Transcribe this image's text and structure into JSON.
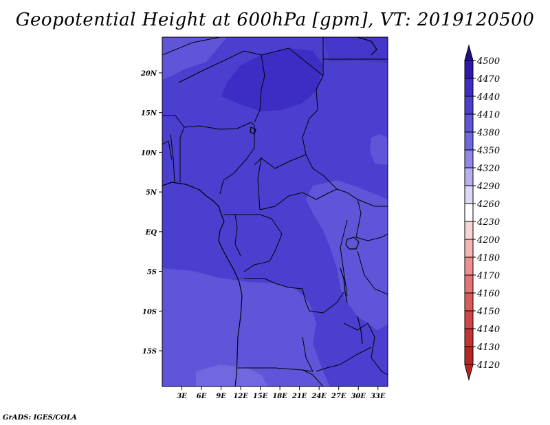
{
  "title": "Geopotential Height at 600hPa [gpm], VT: 2019120500",
  "credit": "GrADS: IGES/COLA",
  "map": {
    "lon_range": [
      0,
      34.5
    ],
    "lat_range": [
      -19.5,
      24.5
    ],
    "lon_ticks": [
      "3E",
      "6E",
      "9E",
      "12E",
      "15E",
      "18E",
      "21E",
      "24E",
      "27E",
      "30E",
      "33E"
    ],
    "lat_ticks": [
      "20N",
      "15N",
      "10N",
      "5N",
      "EQ",
      "5S",
      "10S",
      "15S"
    ],
    "lon_tick_values": [
      3,
      6,
      9,
      12,
      15,
      18,
      21,
      24,
      27,
      30,
      33
    ],
    "lat_tick_values": [
      20,
      15,
      10,
      5,
      0,
      -5,
      -10,
      -15
    ],
    "base_fill": "#4a3fcf",
    "field_colors": {
      "4410": "#4a3fcf",
      "4440": "#3e2dc4",
      "4380": "#5f55d9",
      "4350": "#7068e0"
    }
  },
  "colorbar": {
    "levels": [
      "4500",
      "4470",
      "4440",
      "4410",
      "4380",
      "4350",
      "4320",
      "4290",
      "4260",
      "4230",
      "4200",
      "4180",
      "4170",
      "4160",
      "4150",
      "4140",
      "4130",
      "4120"
    ],
    "colors": [
      "#1f0f8a",
      "#2f19ac",
      "#3e2dc4",
      "#4a3fcf",
      "#5f55d9",
      "#7068e0",
      "#8f87ea",
      "#b6b0f2",
      "#dcd9f8",
      "#ffffff",
      "#fad4d4",
      "#f6b4b4",
      "#ee9090",
      "#e47474",
      "#db5b5b",
      "#d04545",
      "#c43434",
      "#b82525"
    ]
  }
}
